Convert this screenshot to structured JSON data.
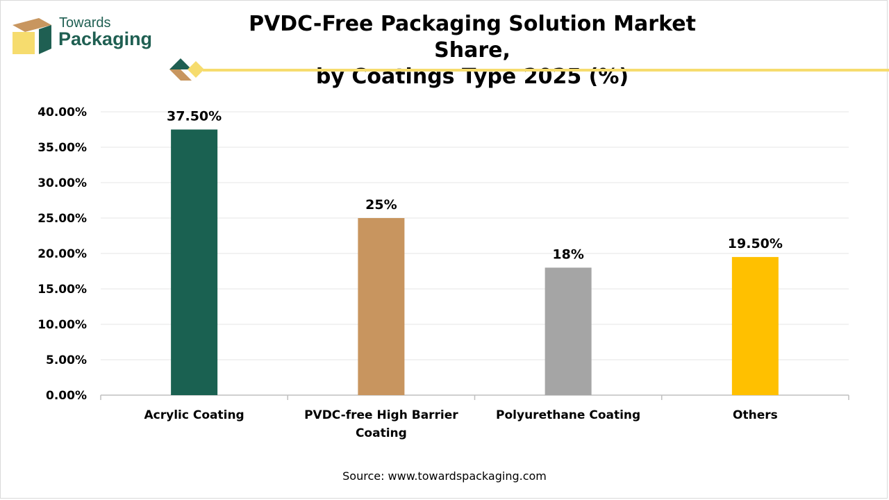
{
  "brand": {
    "line1": "Towards",
    "line2": "Packaging"
  },
  "title": {
    "line1": "PVDC-Free Packaging Solution Market Share,",
    "line2": "by Coatings Type 2025 (%)"
  },
  "source": "Source: www.towardspackaging.com",
  "colors": {
    "brand_green": "#1f5f52",
    "brand_tan": "#c8965f",
    "accent_yellow": "#f6dc6e"
  },
  "chart_data": {
    "type": "bar",
    "categories": [
      "Acrylic Coating",
      "PVDC-free High Barrier Coating",
      "Polyurethane Coating",
      "Others"
    ],
    "category_lines": [
      [
        "Acrylic Coating"
      ],
      [
        "PVDC-free High Barrier",
        "Coating"
      ],
      [
        "Polyurethane Coating"
      ],
      [
        "Others"
      ]
    ],
    "values": [
      37.5,
      25,
      18,
      19.5
    ],
    "data_labels": [
      "37.50%",
      "25%",
      "18%",
      "19.50%"
    ],
    "colors": [
      "#1a6151",
      "#c8955f",
      "#a5a5a5",
      "#ffc000"
    ],
    "ylim": [
      0,
      40
    ],
    "yticks": [
      0,
      5,
      10,
      15,
      20,
      25,
      30,
      35,
      40
    ],
    "ytick_labels": [
      "0.00%",
      "5.00%",
      "10.00%",
      "15.00%",
      "20.00%",
      "25.00%",
      "30.00%",
      "35.00%",
      "40.00%"
    ],
    "grid": true
  }
}
